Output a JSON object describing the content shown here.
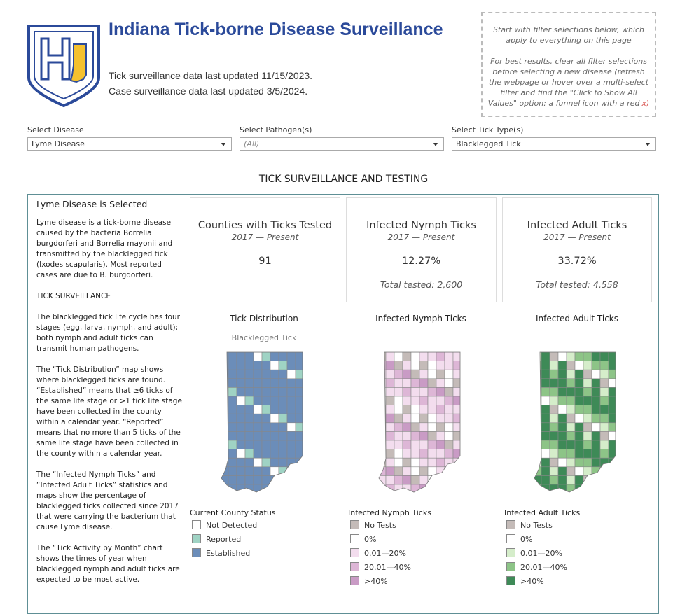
{
  "header": {
    "title": "Indiana Tick-borne Disease Surveillance",
    "updates": [
      "Tick surveillance data last updated 11/15/2023.",
      "Case surveillance data last updated 3/5/2024."
    ],
    "note": {
      "line1": "Start with filter selections below, which apply to everything on this page",
      "line2": "For best results, clear all filter selections before selecting a new disease (refresh the webpage or hover over a multi-select filter and find the \"Click to Show All Values\" option: a funnel icon with a red",
      "line2_red": "x)"
    }
  },
  "filters": [
    {
      "label": "Select Disease",
      "value": "Lyme Disease"
    },
    {
      "label": "Select Pathogen(s)",
      "value": "(All)"
    },
    {
      "label": "Select Tick Type(s)",
      "value": "Blacklegged Tick"
    }
  ],
  "section_title": "TICK SURVEILLANCE AND TESTING",
  "sidebar": {
    "heading": "Lyme Disease is Selected",
    "paragraphs": [
      "Lyme disease is a tick-borne disease caused by the bacteria Borrelia burgdorferi and Borrelia mayonii and transmitted by the blacklegged tick (Ixodes scapularis). Most reported cases are due to B. burgdorferi.",
      "TICK SURVEILLANCE",
      "The blacklegged tick life cycle has four stages (egg, larva, nymph, and adult); both nymph and adult ticks can transmit human pathogens.",
      "The “Tick Distribution” map shows where blacklegged ticks are found. “Established” means that ≥6 ticks of the same life stage or >1 tick life stage have been collected in the county within a calendar year. “Reported” means that no more than 5 ticks of the same life stage have been collected in the county within a calendar year.",
      "The “Infected Nymph Ticks” and “Infected Adult Ticks” statistics and maps show the percentage of blacklegged ticks collected since 2017 that were carrying the bacterium that cause Lyme disease.",
      "The “Tick Activity by Month” chart shows the times of year when blacklegged nymph and adult ticks are expected to be most active."
    ]
  },
  "kpis": [
    {
      "title": "Counties with Ticks Tested",
      "period": "2017 — Present",
      "value": "91"
    },
    {
      "title": "Infected Nymph Ticks",
      "period": "2017 — Present",
      "value": "12.27%",
      "footer": "Total tested: 2,600"
    },
    {
      "title": "Infected Adult Ticks",
      "period": "2017 — Present",
      "value": "33.72%",
      "footer": "Total tested: 4,558"
    }
  ],
  "maps": [
    {
      "title": "Tick Distribution",
      "subtitle": "Blacklegged Tick",
      "legend_title": "Current County Status",
      "legend": [
        {
          "label": "Not Detected",
          "color": "#ffffff"
        },
        {
          "label": "Reported",
          "color": "#9fd3c4"
        },
        {
          "label": "Established",
          "color": "#6b8db9"
        }
      ]
    },
    {
      "title": "Infected Nymph Ticks",
      "legend_title": "Infected Nymph Ticks",
      "legend": [
        {
          "label": "No Tests",
          "color": "#c4bbb8"
        },
        {
          "label": "0%",
          "color": "#ffffff"
        },
        {
          "label": "0.01—20%",
          "color": "#f3ddee"
        },
        {
          "label": "20.01—40%",
          "color": "#ddb6d6"
        },
        {
          "label": ">40%",
          "color": "#c99bc5"
        }
      ]
    },
    {
      "title": "Infected Adult Ticks",
      "legend_title": "Infected Adult Ticks",
      "legend": [
        {
          "label": "No Tests",
          "color": "#c4bbb8"
        },
        {
          "label": "0%",
          "color": "#ffffff"
        },
        {
          "label": "0.01—20%",
          "color": "#d5edca"
        },
        {
          "label": "20.01—40%",
          "color": "#8dc487"
        },
        {
          "label": ">40%",
          "color": "#3e8a57"
        }
      ]
    }
  ]
}
